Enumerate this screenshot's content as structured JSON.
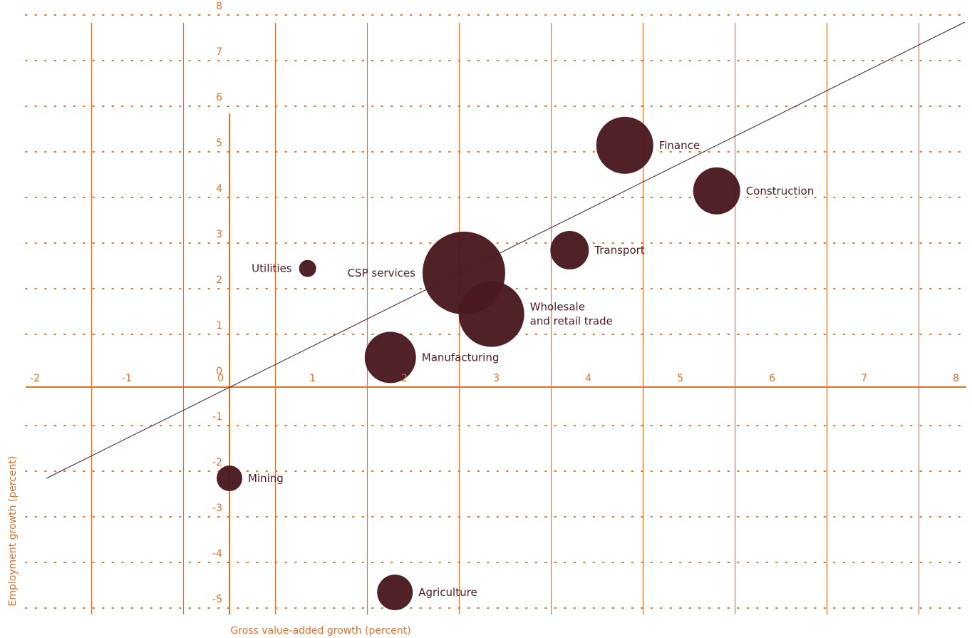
{
  "chart_data": {
    "type": "scatter",
    "title": "",
    "xlabel": "Gross value-added growth (percent)",
    "ylabel": "Employment growth (percent)",
    "xlim": [
      -2,
      8
    ],
    "ylim": [
      -5,
      8
    ],
    "x_ticks": [
      "-2",
      "-1",
      "0",
      "1",
      "2",
      "3",
      "4",
      "5",
      "6",
      "7",
      "8"
    ],
    "y_ticks": [
      "8",
      "7",
      "6",
      "5",
      "4",
      "3",
      "2",
      "1",
      "0",
      "-1",
      "-2",
      "-3",
      "-4",
      "-5"
    ],
    "grid": true,
    "bubble_size": "relative",
    "trend_line": {
      "x": [
        -2,
        8
      ],
      "y": [
        -2,
        8
      ]
    },
    "points": [
      {
        "label": "Finance",
        "x": 4.3,
        "y": 5.3,
        "size": 40,
        "label_pos": "right"
      },
      {
        "label": "Construction",
        "x": 5.3,
        "y": 4.3,
        "size": 33,
        "label_pos": "right"
      },
      {
        "label": "Transport",
        "x": 3.7,
        "y": 3.0,
        "size": 27,
        "label_pos": "right"
      },
      {
        "label": "Utilities",
        "x": 0.85,
        "y": 2.6,
        "size": 12,
        "label_pos": "left"
      },
      {
        "label": "CSP services",
        "x": 2.55,
        "y": 2.5,
        "size": 58,
        "label_pos": "left"
      },
      {
        "label": "Wholesale\nand retail trade",
        "x": 2.85,
        "y": 1.6,
        "size": 46,
        "label_pos": "right"
      },
      {
        "label": "Manufacturing",
        "x": 1.75,
        "y": 0.65,
        "size": 36,
        "label_pos": "right"
      },
      {
        "label": "Mining",
        "x": 0.0,
        "y": -2.0,
        "size": 18,
        "label_pos": "right"
      },
      {
        "label": "Agriculture",
        "x": 1.8,
        "y": -4.5,
        "size": 25,
        "label_pos": "right"
      }
    ],
    "colors": {
      "axis": "#e0702a",
      "bubble": "#4a1a20",
      "trend": "#4a1a20"
    }
  }
}
